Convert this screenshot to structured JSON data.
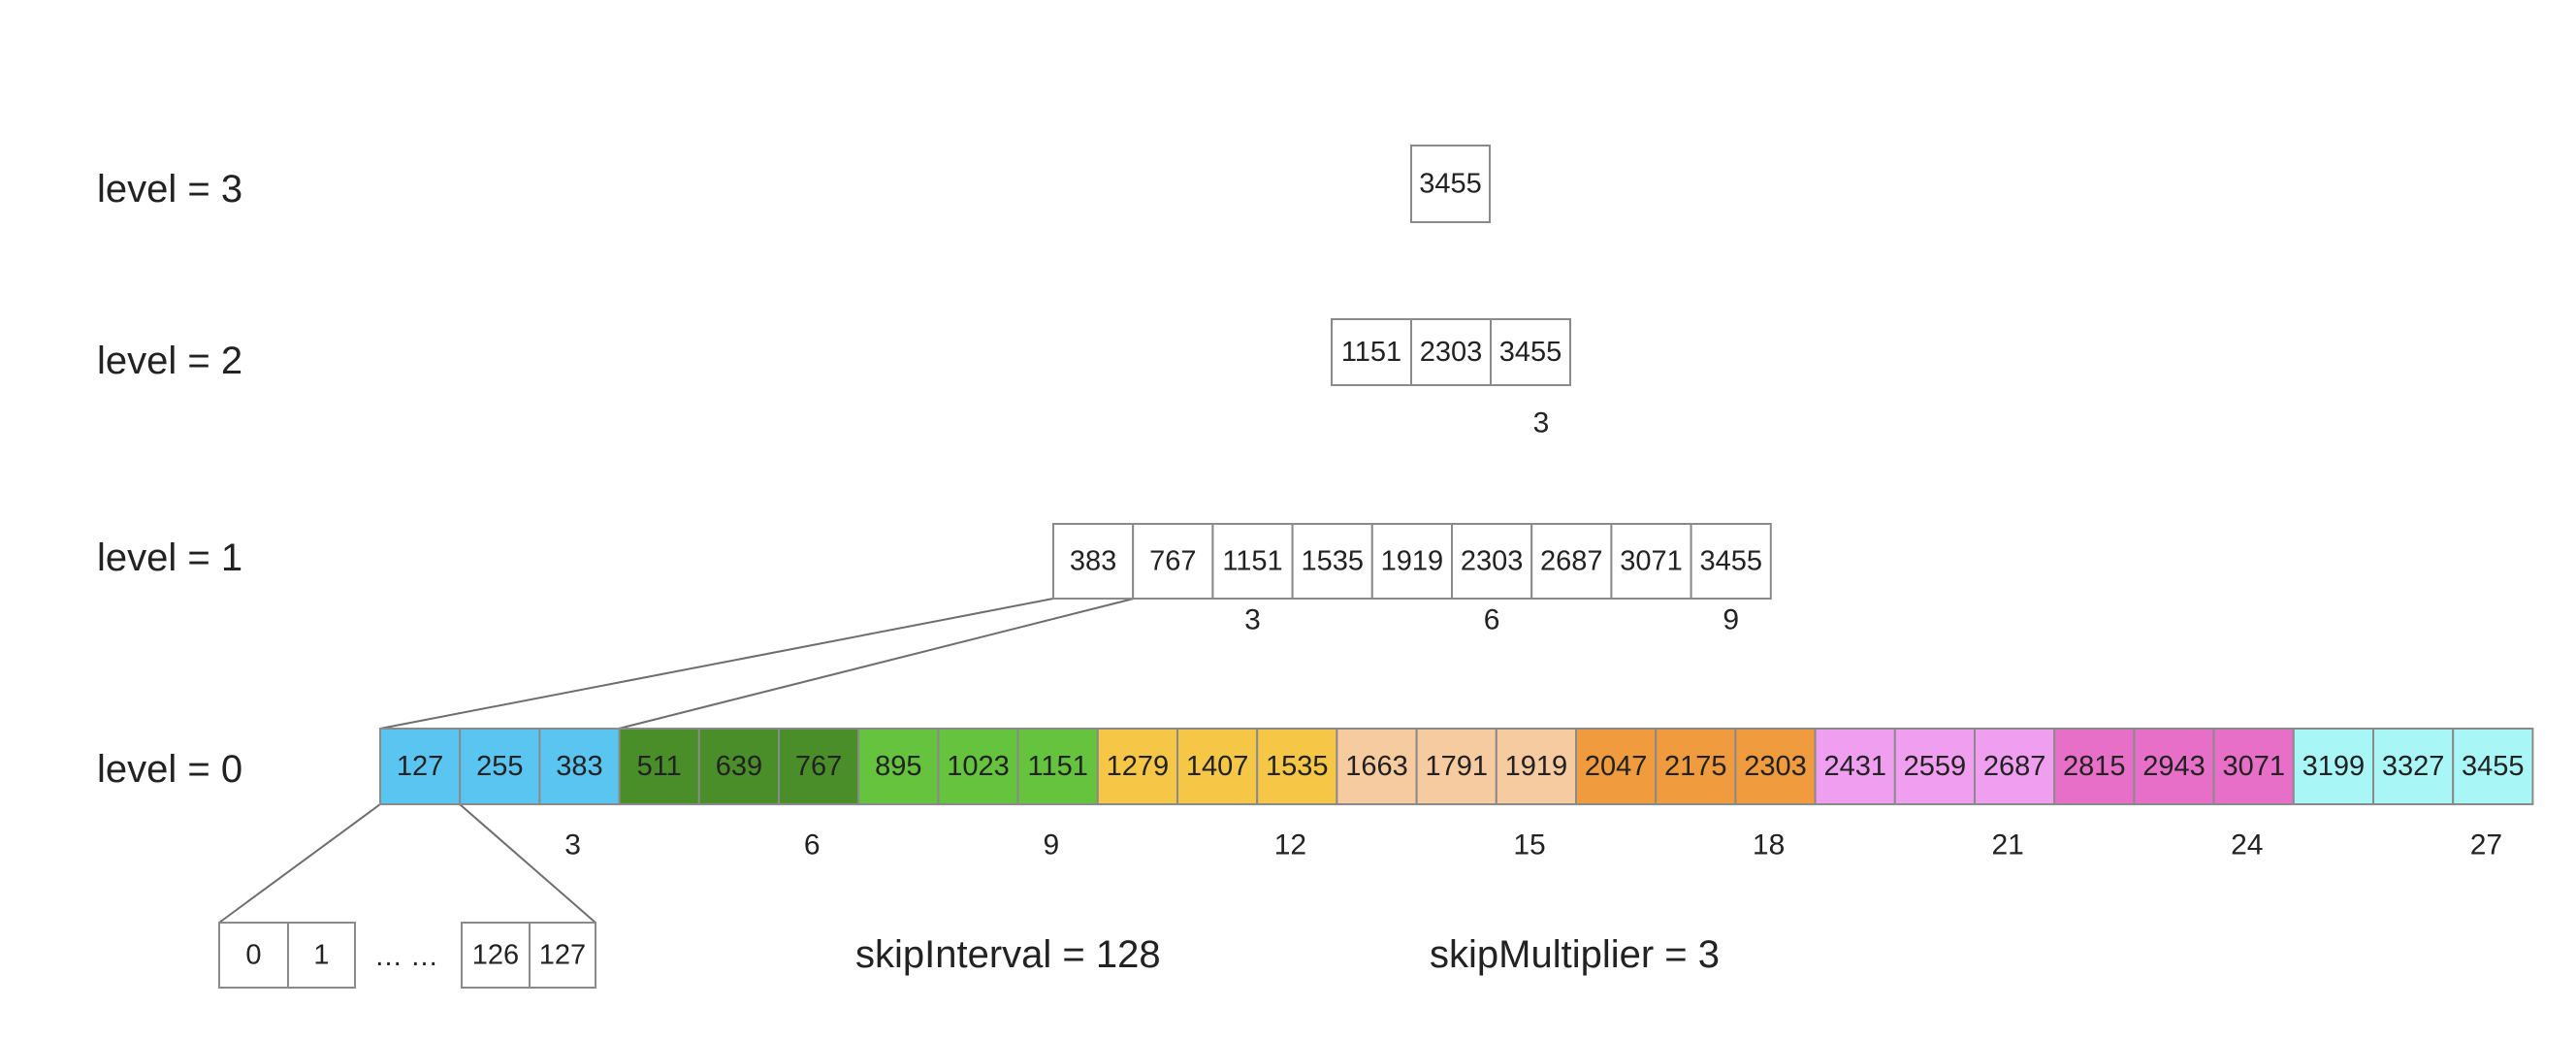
{
  "levels": [
    {
      "label": "level = 3",
      "values": [
        "3455"
      ],
      "indices": []
    },
    {
      "label": "level = 2",
      "values": [
        "1151",
        "2303",
        "3455"
      ],
      "indices": [
        "3"
      ]
    },
    {
      "label": "level = 1",
      "values": [
        "383",
        "767",
        "1151",
        "1535",
        "1919",
        "2303",
        "2687",
        "3071",
        "3455"
      ],
      "indices": [
        "3",
        "6",
        "9"
      ]
    },
    {
      "label": "level = 0",
      "values": [
        "127",
        "255",
        "383",
        "511",
        "639",
        "767",
        "895",
        "1023",
        "1151",
        "1279",
        "1407",
        "1535",
        "1663",
        "1791",
        "1919",
        "2047",
        "2175",
        "2303",
        "2431",
        "2559",
        "2687",
        "2815",
        "2943",
        "3071",
        "3199",
        "3327",
        "3455"
      ],
      "indices": [
        "3",
        "6",
        "9",
        "12",
        "15",
        "18",
        "21",
        "24",
        "27"
      ],
      "group_colors": [
        "#5bc5f2",
        "#4a8e2a",
        "#66c33e",
        "#f6c746",
        "#f7cba0",
        "#ef9b3e",
        "#f09ef0",
        "#e86fc8",
        "#a9f6f6"
      ]
    }
  ],
  "block": {
    "values": [
      "0",
      "1",
      "126",
      "127"
    ],
    "ellipsis": "… …"
  },
  "params": {
    "skip_interval": "skipInterval = 128",
    "skip_multiplier": "skipMultiplier = 3"
  }
}
